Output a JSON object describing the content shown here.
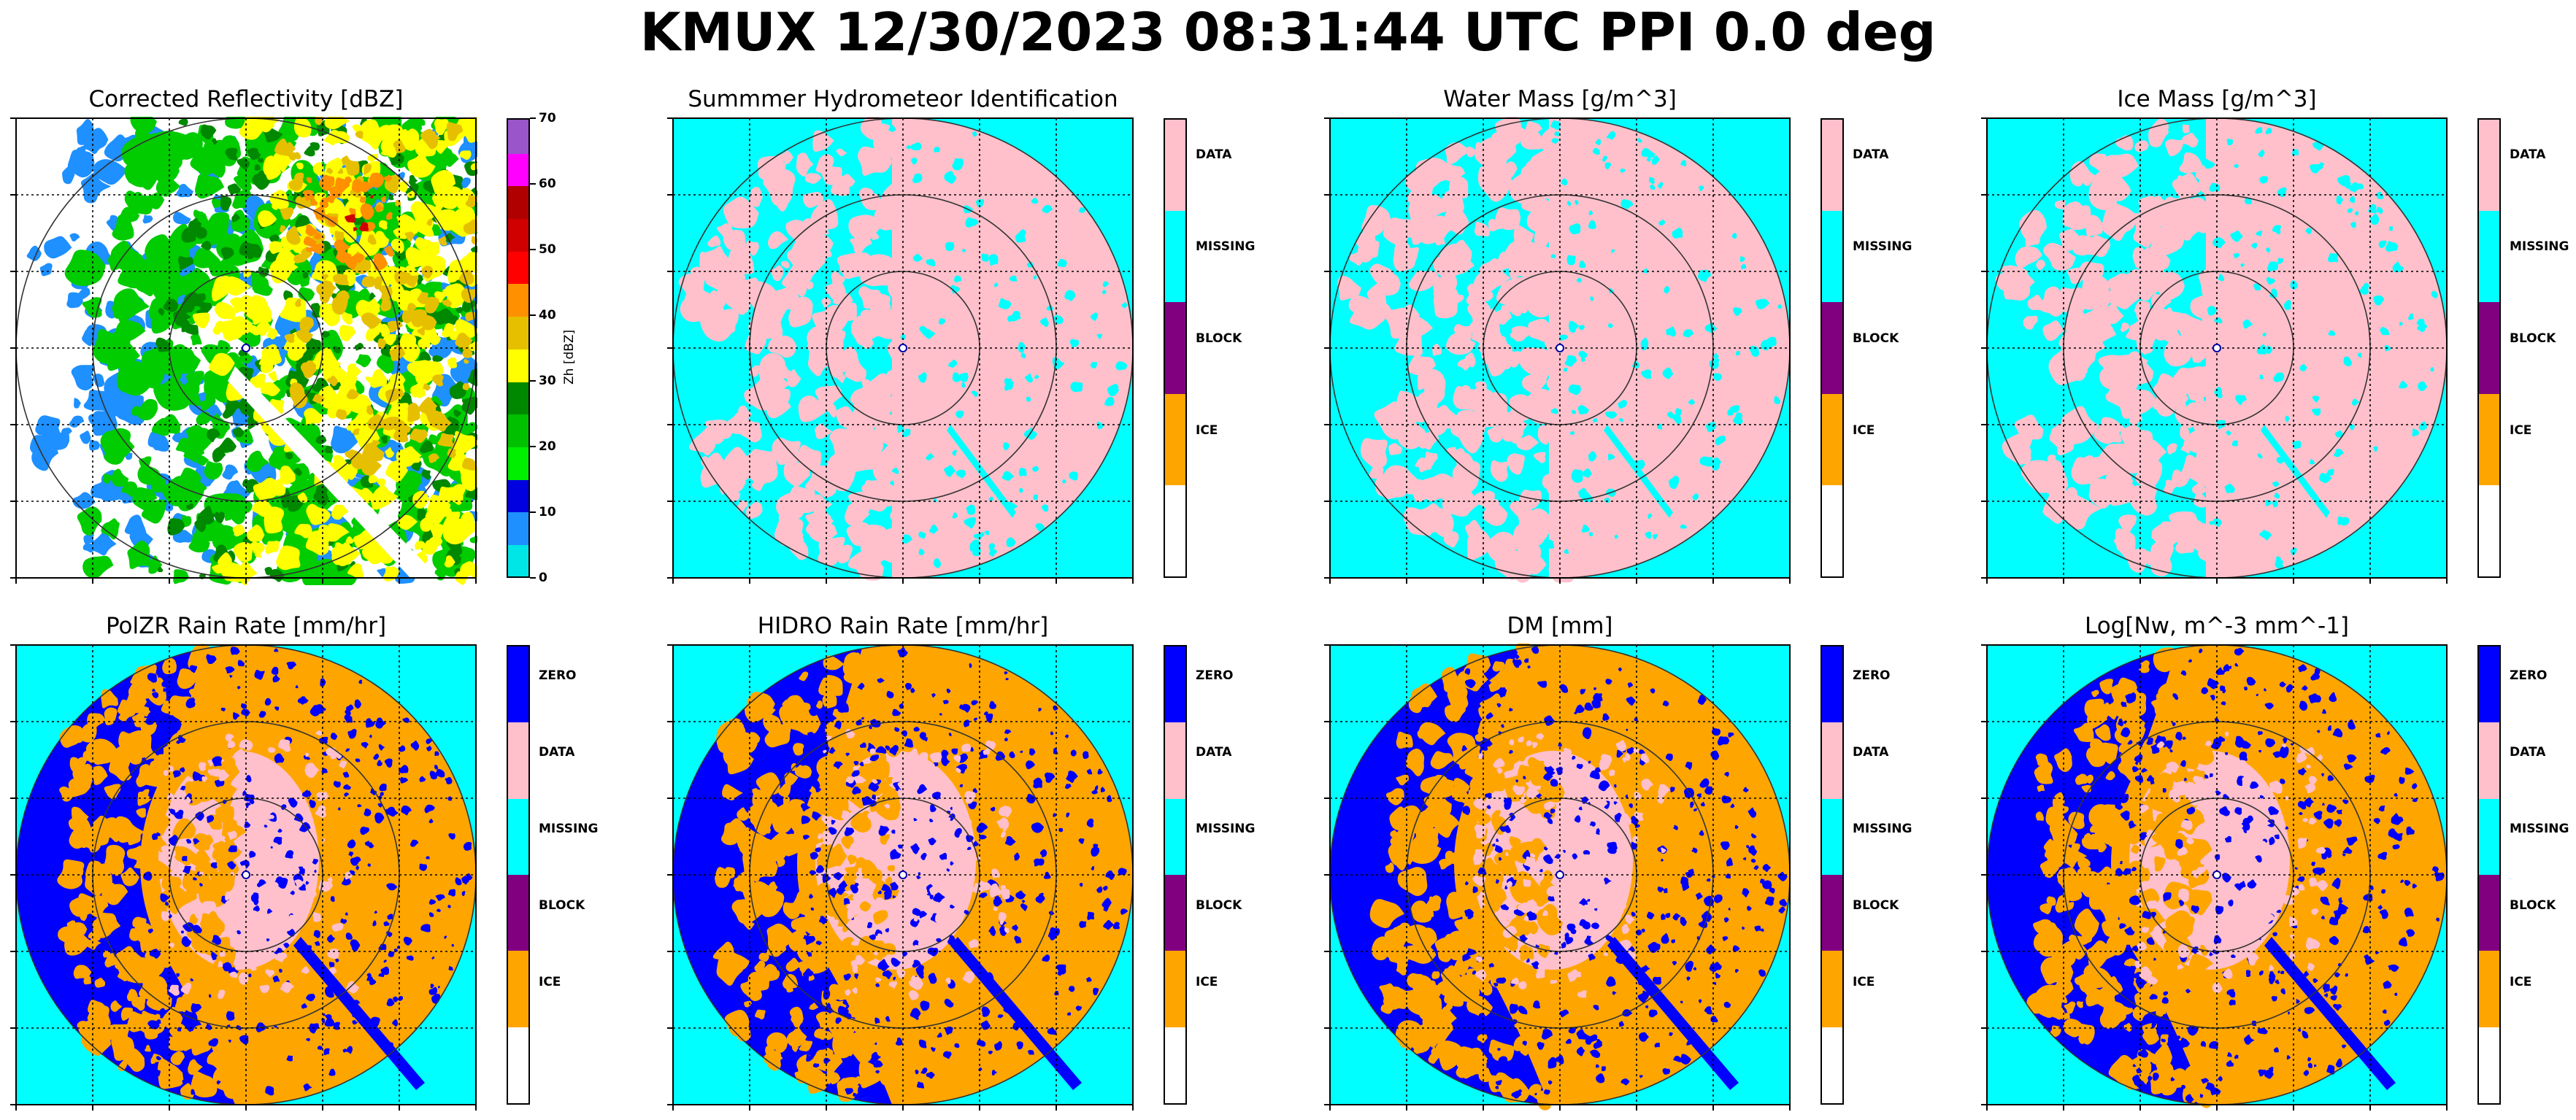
{
  "suptitle": "KMUX 12/30/2023 08:31:44 UTC PPI 0.0 deg",
  "colors": {
    "zero": "#0000ff",
    "data": "#ffc0cb",
    "missing": "#00ffff",
    "block": "#800080",
    "ice": "#ffa500",
    "blank": "#ffffff"
  },
  "chart_data": [
    {
      "type": "heatmap",
      "title": "Corrected Reflectivity [dBZ]",
      "colorbar_label": "Zh [dBZ]",
      "colorbar_ticks": [
        "0",
        "10",
        "20",
        "30",
        "40",
        "50",
        "60",
        "70"
      ],
      "colorbar_colors": [
        "#00e5e5",
        "#1e90ff",
        "#0000e0",
        "#00ee00",
        "#00c000",
        "#008800",
        "#ffff00",
        "#e6c000",
        "#ff9000",
        "#ff0000",
        "#d00000",
        "#b00000",
        "#ff00ff",
        "#9955c9"
      ],
      "range_rings": 3,
      "grid": "dotted"
    },
    {
      "type": "heatmap",
      "title": "Summmer Hydrometeor Identification",
      "colorbar_categories": [
        "DATA",
        "MISSING",
        "BLOCK",
        "ICE",
        ""
      ],
      "range_rings": 3,
      "grid": "dotted"
    },
    {
      "type": "heatmap",
      "title": "Water Mass [g/m^3]",
      "colorbar_categories": [
        "DATA",
        "MISSING",
        "BLOCK",
        "ICE",
        ""
      ],
      "range_rings": 3,
      "grid": "dotted"
    },
    {
      "type": "heatmap",
      "title": "Ice Mass [g/m^3]",
      "colorbar_categories": [
        "DATA",
        "MISSING",
        "BLOCK",
        "ICE",
        ""
      ],
      "range_rings": 3,
      "grid": "dotted"
    },
    {
      "type": "heatmap",
      "title": "PolZR Rain Rate [mm/hr]",
      "colorbar_categories": [
        "ZERO",
        "DATA",
        "MISSING",
        "BLOCK",
        "ICE",
        ""
      ],
      "range_rings": 3,
      "grid": "dotted"
    },
    {
      "type": "heatmap",
      "title": "HIDRO Rain Rate [mm/hr]",
      "colorbar_categories": [
        "ZERO",
        "DATA",
        "MISSING",
        "BLOCK",
        "ICE",
        ""
      ],
      "range_rings": 3,
      "grid": "dotted"
    },
    {
      "type": "heatmap",
      "title": "DM [mm]",
      "colorbar_categories": [
        "ZERO",
        "DATA",
        "MISSING",
        "BLOCK",
        "ICE",
        ""
      ],
      "range_rings": 3,
      "grid": "dotted"
    },
    {
      "type": "heatmap",
      "title": "Log[Nw, m^-3 mm^-1]",
      "colorbar_categories": [
        "ZERO",
        "DATA",
        "MISSING",
        "BLOCK",
        "ICE",
        ""
      ],
      "range_rings": 3,
      "grid": "dotted"
    }
  ]
}
